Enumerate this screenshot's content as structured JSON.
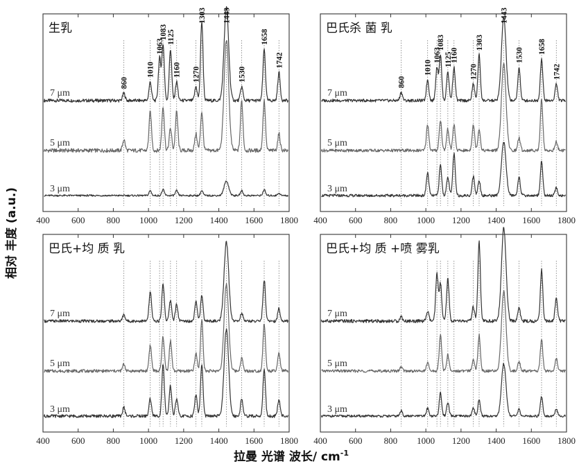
{
  "chart_data": {
    "type": "line",
    "xlabel": "拉曼 光谱  波长/ cm",
    "xlabel_superscript": "-1",
    "ylabel": "相对 丰度 (a.u.)",
    "xlim": [
      400,
      1800
    ],
    "x_ticks": [
      "400",
      "600",
      "800",
      "1000",
      "1200",
      "1400",
      "1600",
      "1800"
    ],
    "peak_positions": [
      860,
      1010,
      1063,
      1083,
      1125,
      1160,
      1270,
      1303,
      1443,
      1530,
      1658,
      1742
    ],
    "panels": [
      {
        "title": "生乳",
        "peak_labels": [
          "860",
          "1010",
          "1063",
          "1083",
          "1125",
          "1160",
          "1270",
          "1303",
          "1443",
          "1530",
          "1658",
          "1742"
        ],
        "series": [
          {
            "name": "7 μm",
            "color": "#333333",
            "peaks": [
              [
                860,
                0.08
              ],
              [
                1010,
                0.2
              ],
              [
                1063,
                0.45
              ],
              [
                1083,
                0.6
              ],
              [
                1125,
                0.55
              ],
              [
                1160,
                0.2
              ],
              [
                1270,
                0.15
              ],
              [
                1303,
                0.85
              ],
              [
                1443,
                1.0
              ],
              [
                1530,
                0.15
              ],
              [
                1658,
                0.55
              ],
              [
                1742,
                0.3
              ]
            ]
          },
          {
            "name": "5 μm",
            "color": "#666666",
            "peaks": [
              [
                860,
                0.1
              ],
              [
                1010,
                0.35
              ],
              [
                1083,
                0.4
              ],
              [
                1125,
                0.2
              ],
              [
                1160,
                0.35
              ],
              [
                1270,
                0.15
              ],
              [
                1303,
                0.35
              ],
              [
                1443,
                1.0
              ],
              [
                1530,
                0.45
              ],
              [
                1658,
                0.45
              ],
              [
                1742,
                0.15
              ]
            ]
          },
          {
            "name": "3 μm",
            "color": "#333333",
            "peaks": [
              [
                1010,
                0.1
              ],
              [
                1083,
                0.12
              ],
              [
                1160,
                0.1
              ],
              [
                1303,
                0.1
              ],
              [
                1443,
                0.3
              ],
              [
                1530,
                0.1
              ],
              [
                1658,
                0.12
              ],
              [
                1742,
                0.05
              ]
            ]
          }
        ]
      },
      {
        "title": "巴氏杀 菌 乳",
        "peak_labels": [
          "860",
          "1010",
          "1063",
          "1083",
          "1125",
          "1160",
          "1270",
          "1303",
          "1443",
          "1530",
          "1658",
          "1742"
        ],
        "series": [
          {
            "name": "7 μm",
            "color": "#333333",
            "peaks": [
              [
                860,
                0.1
              ],
              [
                1010,
                0.25
              ],
              [
                1063,
                0.4
              ],
              [
                1083,
                0.55
              ],
              [
                1125,
                0.35
              ],
              [
                1160,
                0.4
              ],
              [
                1270,
                0.2
              ],
              [
                1303,
                0.55
              ],
              [
                1443,
                1.0
              ],
              [
                1530,
                0.4
              ],
              [
                1658,
                0.5
              ],
              [
                1742,
                0.2
              ]
            ]
          },
          {
            "name": "5 μm",
            "color": "#666666",
            "peaks": [
              [
                1010,
                0.3
              ],
              [
                1083,
                0.35
              ],
              [
                1125,
                0.25
              ],
              [
                1160,
                0.3
              ],
              [
                1270,
                0.3
              ],
              [
                1303,
                0.25
              ],
              [
                1443,
                1.0
              ],
              [
                1530,
                0.15
              ],
              [
                1658,
                0.6
              ],
              [
                1742,
                0.1
              ]
            ]
          },
          {
            "name": "3 μm",
            "color": "#333333",
            "peaks": [
              [
                1010,
                0.3
              ],
              [
                1083,
                0.4
              ],
              [
                1125,
                0.25
              ],
              [
                1160,
                0.55
              ],
              [
                1270,
                0.25
              ],
              [
                1303,
                0.2
              ],
              [
                1443,
                0.7
              ],
              [
                1530,
                0.25
              ],
              [
                1658,
                0.45
              ],
              [
                1742,
                0.1
              ]
            ]
          }
        ]
      },
      {
        "title": "巴氏+均 质 乳",
        "peak_labels": [],
        "series": [
          {
            "name": "7 μm",
            "color": "#333333",
            "peaks": [
              [
                860,
                0.08
              ],
              [
                1010,
                0.35
              ],
              [
                1083,
                0.45
              ],
              [
                1125,
                0.25
              ],
              [
                1160,
                0.2
              ],
              [
                1270,
                0.25
              ],
              [
                1303,
                0.3
              ],
              [
                1443,
                0.95
              ],
              [
                1530,
                0.1
              ],
              [
                1658,
                0.5
              ],
              [
                1742,
                0.15
              ]
            ]
          },
          {
            "name": "5 μm",
            "color": "#666666",
            "peaks": [
              [
                860,
                0.08
              ],
              [
                1010,
                0.3
              ],
              [
                1083,
                0.4
              ],
              [
                1125,
                0.35
              ],
              [
                1270,
                0.2
              ],
              [
                1303,
                0.6
              ],
              [
                1443,
                1.0
              ],
              [
                1530,
                0.15
              ],
              [
                1658,
                0.55
              ],
              [
                1742,
                0.2
              ]
            ]
          },
          {
            "name": "3 μm",
            "color": "#333333",
            "peaks": [
              [
                860,
                0.1
              ],
              [
                1010,
                0.2
              ],
              [
                1083,
                0.6
              ],
              [
                1125,
                0.35
              ],
              [
                1160,
                0.2
              ],
              [
                1270,
                0.25
              ],
              [
                1303,
                0.6
              ],
              [
                1443,
                1.0
              ],
              [
                1530,
                0.2
              ],
              [
                1658,
                0.55
              ],
              [
                1742,
                0.2
              ]
            ]
          }
        ]
      },
      {
        "title": "巴氏+均 质 +喷 雾乳",
        "peak_labels": [],
        "series": [
          {
            "name": "7 μm",
            "color": "#333333",
            "peaks": [
              [
                860,
                0.05
              ],
              [
                1010,
                0.1
              ],
              [
                1063,
                0.5
              ],
              [
                1083,
                0.4
              ],
              [
                1125,
                0.45
              ],
              [
                1270,
                0.15
              ],
              [
                1303,
                0.85
              ],
              [
                1443,
                1.0
              ],
              [
                1530,
                0.15
              ],
              [
                1658,
                0.55
              ],
              [
                1742,
                0.25
              ]
            ]
          },
          {
            "name": "5 μm",
            "color": "#666666",
            "peaks": [
              [
                860,
                0.05
              ],
              [
                1010,
                0.1
              ],
              [
                1083,
                0.45
              ],
              [
                1125,
                0.2
              ],
              [
                1270,
                0.15
              ],
              [
                1303,
                0.45
              ],
              [
                1443,
                1.0
              ],
              [
                1530,
                0.12
              ],
              [
                1658,
                0.4
              ],
              [
                1742,
                0.15
              ]
            ]
          },
          {
            "name": "3 μm",
            "color": "#333333",
            "peaks": [
              [
                860,
                0.08
              ],
              [
                1010,
                0.12
              ],
              [
                1083,
                0.35
              ],
              [
                1125,
                0.2
              ],
              [
                1270,
                0.12
              ],
              [
                1303,
                0.25
              ],
              [
                1443,
                0.8
              ],
              [
                1530,
                0.1
              ],
              [
                1658,
                0.3
              ],
              [
                1742,
                0.1
              ]
            ]
          }
        ]
      }
    ]
  }
}
